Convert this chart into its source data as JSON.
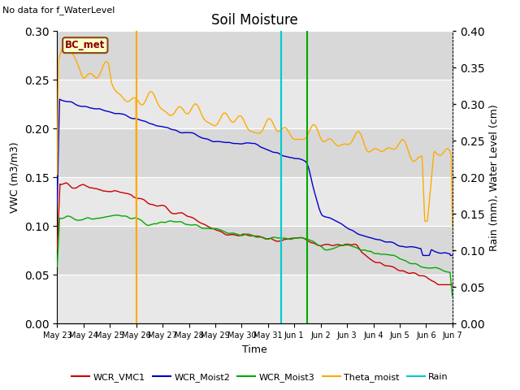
{
  "title": "Soil Moisture",
  "top_left_text": "No data for f_WaterLevel",
  "box_label": "BC_met",
  "ylabel_left": "VWC (m3/m3)",
  "ylabel_right": "Rain (mm), Water Level (cm)",
  "xlabel": "Time",
  "ylim_left": [
    0.0,
    0.3
  ],
  "ylim_right": [
    0.0,
    0.4
  ],
  "yticks_left": [
    0.0,
    0.05,
    0.1,
    0.15,
    0.2,
    0.25,
    0.3
  ],
  "yticks_right": [
    0.0,
    0.05,
    0.1,
    0.15,
    0.2,
    0.25,
    0.3,
    0.35,
    0.4
  ],
  "bg_color": "#e0e0e0",
  "colors": {
    "WCR_VMC1": "#cc0000",
    "WCR_Moist2": "#0000cc",
    "WCR_Moist3": "#00aa00",
    "Theta_moist": "#ffaa00",
    "Rain": "#00cccc"
  },
  "xlim": [
    0,
    15
  ],
  "tick_labels": [
    "May 23",
    "May 24",
    "May 25",
    "May 26",
    "May 27",
    "May 28",
    "May 29",
    "May 30",
    "May 31",
    "Jun 1",
    "Jun 2",
    "Jun 3",
    "Jun 4",
    "Jun 5",
    "Jun 6",
    "Jun 7"
  ],
  "tick_positions": [
    0,
    1,
    2,
    3,
    4,
    5,
    6,
    7,
    8,
    9,
    10,
    11,
    12,
    13,
    14,
    15
  ],
  "vline_cyan_x": 8.5,
  "vline_orange_x": 3.0,
  "vline_green_x": 9.5,
  "box_label_color": "#8B0000",
  "box_face_color": "#ffffcc",
  "box_edge_color": "#8B4513",
  "legend_labels": [
    "WCR_VMC1",
    "WCR_Moist2",
    "WCR_Moist3",
    "Theta_moist",
    "Rain"
  ]
}
